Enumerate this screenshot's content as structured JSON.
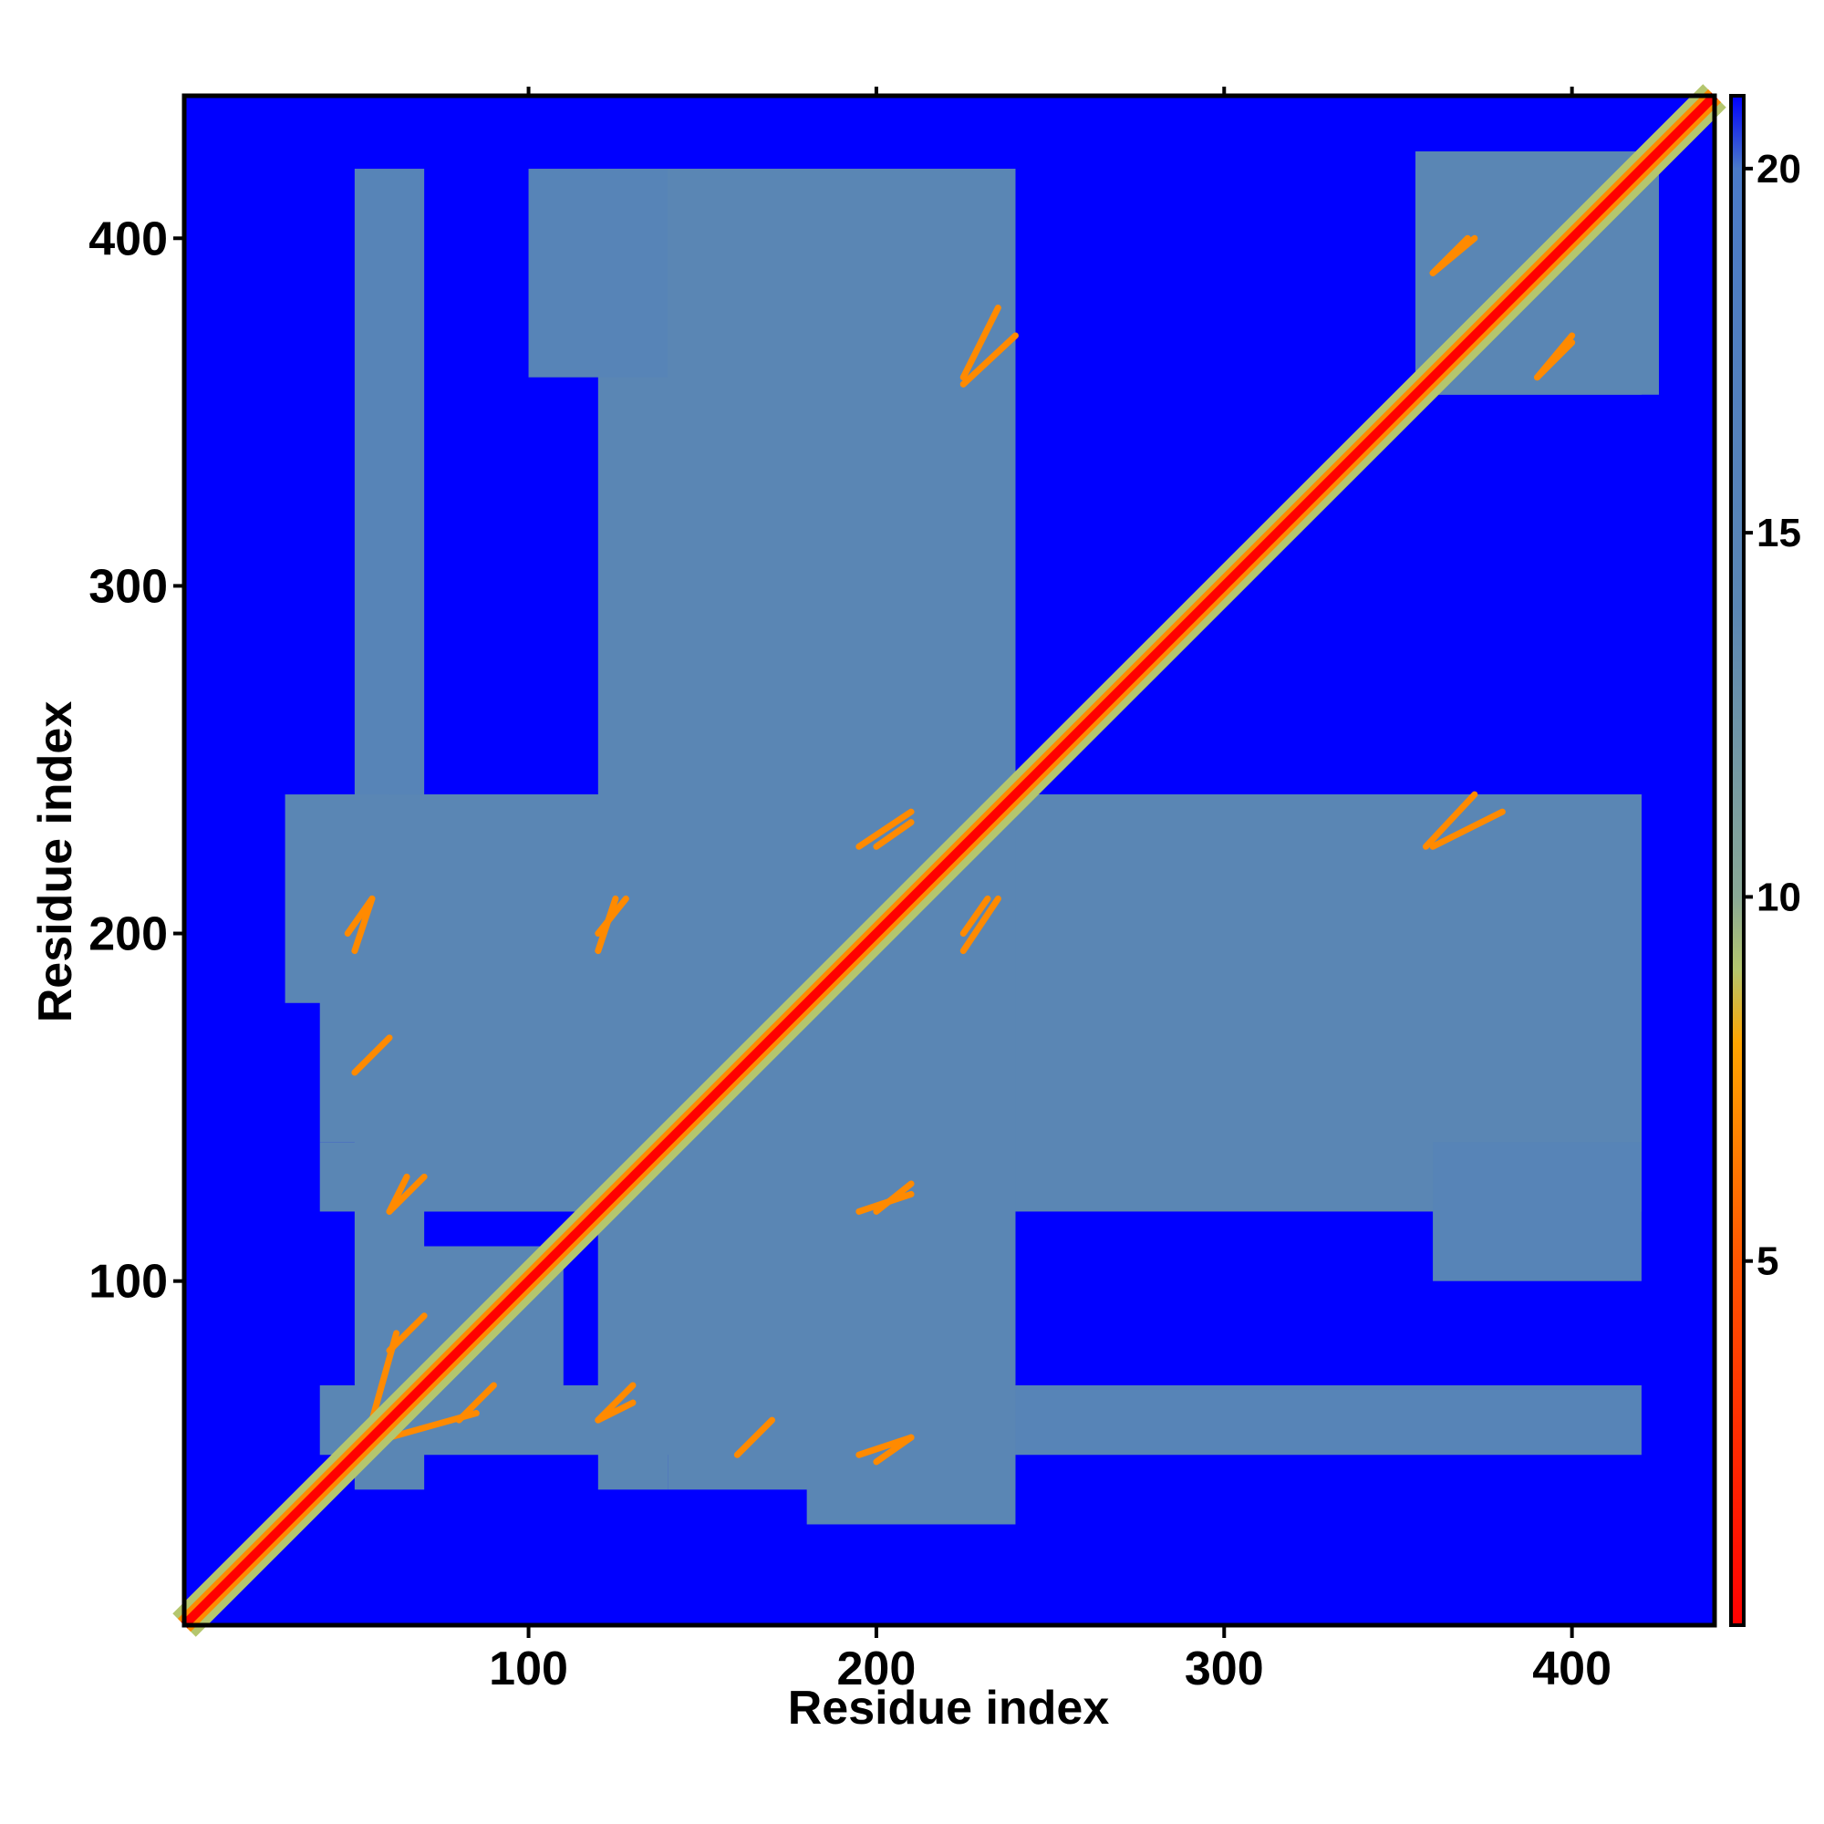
{
  "chart_data": {
    "type": "heatmap",
    "title": "",
    "xlabel": "Residue index",
    "ylabel": "Residue index",
    "xlim": [
      1,
      441
    ],
    "ylim": [
      1,
      441
    ],
    "x_ticks": [
      100,
      200,
      300,
      400
    ],
    "y_ticks": [
      100,
      200,
      300,
      400
    ],
    "colorbar": {
      "range": [
        0,
        21
      ],
      "ticks": [
        5,
        10,
        15,
        20
      ],
      "stops": [
        {
          "value": 0,
          "color": "#ff0000"
        },
        {
          "value": 5,
          "color": "#ff5500"
        },
        {
          "value": 8,
          "color": "#ffa500"
        },
        {
          "value": 9,
          "color": "#b4c66e"
        },
        {
          "value": 10,
          "color": "#8aa896"
        },
        {
          "value": 14,
          "color": "#5a86b4"
        },
        {
          "value": 20,
          "color": "#4a7ac8"
        },
        {
          "value": 21,
          "color": "#0000ff"
        }
      ]
    },
    "background_value": 21,
    "description_note": "Residue-residue distance map; diagonal distance near 0 (red), contacts in orange/yellow, intermediate distances steel-blue, far distances blue.",
    "colors": {
      "far": "#0000ff",
      "medium": "#5a86b4",
      "near": "#c8c878",
      "contact": "#ffa500",
      "diagonal": "#ff0000"
    },
    "regions": [
      {
        "x": [
          50,
          70
        ],
        "y": [
          40,
          240
        ],
        "value": 14
      },
      {
        "x": [
          120,
          140
        ],
        "y": [
          40,
          240
        ],
        "value": 14
      },
      {
        "x": [
          140,
          240
        ],
        "y": [
          40,
          420
        ],
        "value": 14
      },
      {
        "x": [
          60,
          240
        ],
        "y": [
          120,
          240
        ],
        "value": 14
      },
      {
        "x": [
          240,
          420
        ],
        "y": [
          120,
          240
        ],
        "value": 14
      },
      {
        "x": [
          240,
          420
        ],
        "y": [
          50,
          70
        ],
        "value": 15
      },
      {
        "x": [
          355,
          420
        ],
        "y": [
          355,
          425
        ],
        "value": 14
      },
      {
        "x": [
          70,
          110
        ],
        "y": [
          60,
          110
        ],
        "value": 14
      },
      {
        "x": [
          180,
          240
        ],
        "y": [
          30,
          60
        ],
        "value": 14
      },
      {
        "x": [
          100,
          140
        ],
        "y": [
          360,
          420
        ],
        "value": 15
      }
    ],
    "contact_segments": [
      {
        "x": [
          55,
          62
        ],
        "y": [
          60,
          85
        ],
        "value": 7
      },
      {
        "x": [
          60,
          70
        ],
        "y": [
          120,
          130
        ],
        "value": 7
      },
      {
        "x": [
          48,
          55
        ],
        "y": [
          200,
          210
        ],
        "value": 7
      },
      {
        "x": [
          120,
          128
        ],
        "y": [
          200,
          210
        ],
        "value": 7
      },
      {
        "x": [
          195,
          210
        ],
        "y": [
          225,
          235
        ],
        "value": 7
      },
      {
        "x": [
          225,
          232
        ],
        "y": [
          200,
          210
        ],
        "value": 7
      },
      {
        "x": [
          225,
          235
        ],
        "y": [
          360,
          380
        ],
        "value": 7
      },
      {
        "x": [
          360,
          372
        ],
        "y": [
          390,
          400
        ],
        "value": 7
      },
      {
        "x": [
          390,
          400
        ],
        "y": [
          360,
          370
        ],
        "value": 7
      },
      {
        "x": [
          358,
          372
        ],
        "y": [
          225,
          240
        ],
        "value": 7
      },
      {
        "x": [
          120,
          130
        ],
        "y": [
          60,
          65
        ],
        "value": 7
      },
      {
        "x": [
          160,
          170
        ],
        "y": [
          50,
          60
        ],
        "value": 7
      },
      {
        "x": [
          195,
          210
        ],
        "y": [
          50,
          55
        ],
        "value": 7
      },
      {
        "x": [
          60,
          70
        ],
        "y": [
          80,
          90
        ],
        "value": 7
      },
      {
        "x": [
          195,
          210
        ],
        "y": [
          120,
          125
        ],
        "value": 7
      }
    ]
  }
}
